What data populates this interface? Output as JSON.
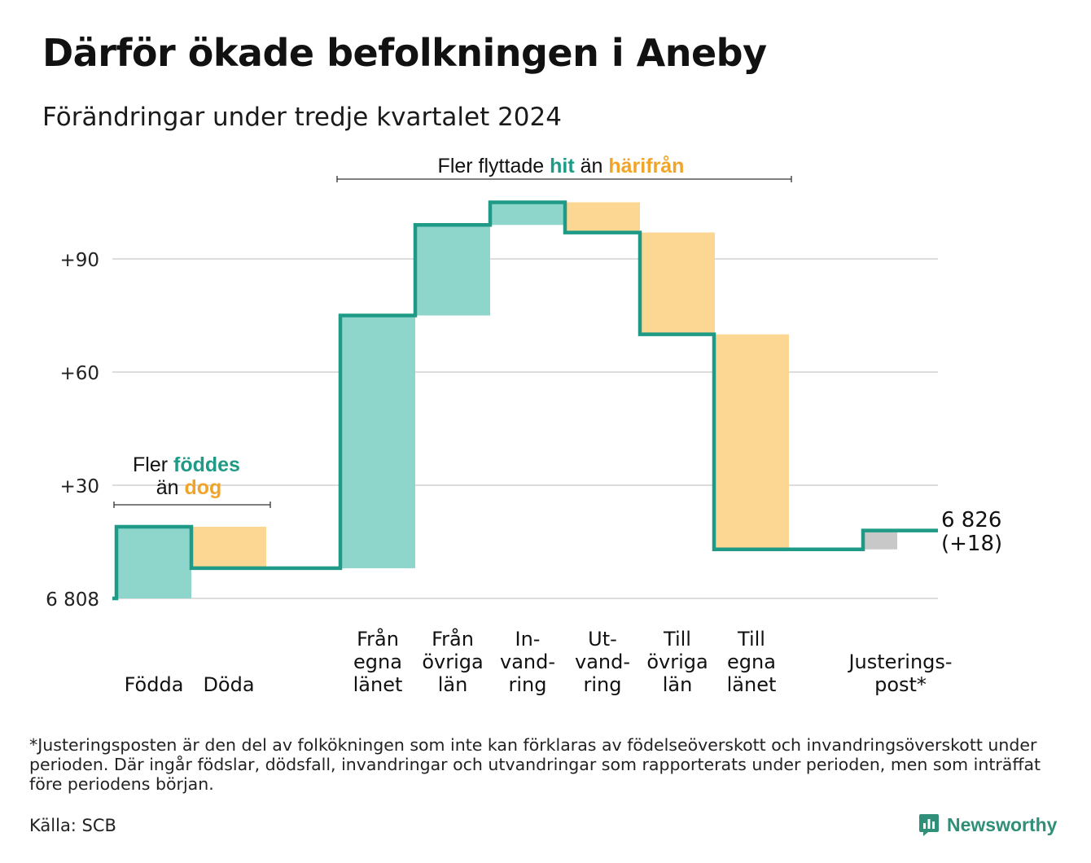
{
  "title": "Därför ökade befolkningen i Aneby",
  "subtitle": "Förändringar under tredje kvartalet 2024",
  "colors": {
    "increase_fill": "#8ed6cc",
    "decrease_fill": "#fbd793",
    "adjustment_fill": "#c8c8c8",
    "line": "#1f9a87",
    "teal_text": "#1f9a87",
    "orange_text": "#f0a52a",
    "grid": "#dddddd"
  },
  "annotations": {
    "births": {
      "prefix": "Fler ",
      "highlight1": "föddes",
      "middle": "än ",
      "highlight2": "dog"
    },
    "moves": {
      "prefix": "Fler flyttade ",
      "highlight1": "hit",
      "middle": " än ",
      "highlight2": "härifrån"
    }
  },
  "end_label": {
    "value": "6 826",
    "change": "(+18)"
  },
  "chart_data": {
    "type": "waterfall",
    "base_value": 6808,
    "base_label": "6 808",
    "y_ticks": [
      {
        "value": 30,
        "label": "+30"
      },
      {
        "value": 60,
        "label": "+60"
      },
      {
        "value": 90,
        "label": "+90"
      }
    ],
    "ylim": [
      0,
      105
    ],
    "grid": true,
    "steps": [
      {
        "label": [
          "Födda"
        ],
        "change": 19,
        "kind": "increase"
      },
      {
        "label": [
          "Döda"
        ],
        "change": -11,
        "kind": "decrease"
      },
      {
        "label": [
          "Från",
          "egna",
          "länet"
        ],
        "change": 67,
        "kind": "increase"
      },
      {
        "label": [
          "Från",
          "övriga",
          "län"
        ],
        "change": 24,
        "kind": "increase"
      },
      {
        "label": [
          "In-",
          "vand-",
          "ring"
        ],
        "change": 6,
        "kind": "increase"
      },
      {
        "label": [
          "Ut-",
          "vand-",
          "ring"
        ],
        "change": -8,
        "kind": "decrease"
      },
      {
        "label": [
          "Till",
          "övriga",
          "län"
        ],
        "change": -27,
        "kind": "decrease"
      },
      {
        "label": [
          "Till",
          "egna",
          "länet"
        ],
        "change": -57,
        "kind": "decrease"
      },
      {
        "label": [
          "Justerings-",
          "post*"
        ],
        "change": 5,
        "kind": "adjustment"
      }
    ],
    "end_value": 6826,
    "end_change": 18
  },
  "footnote": "*Justeringsposten är den del av folkökningen som inte kan förklaras av födelseöverskott och invandringsöverskott under perioden. Där ingår födslar, dödsfall, invandringar och utvandringar som rapporterats under perioden, men som inträffat före periodens början.",
  "source": "Källa: SCB",
  "brand": "Newsworthy"
}
